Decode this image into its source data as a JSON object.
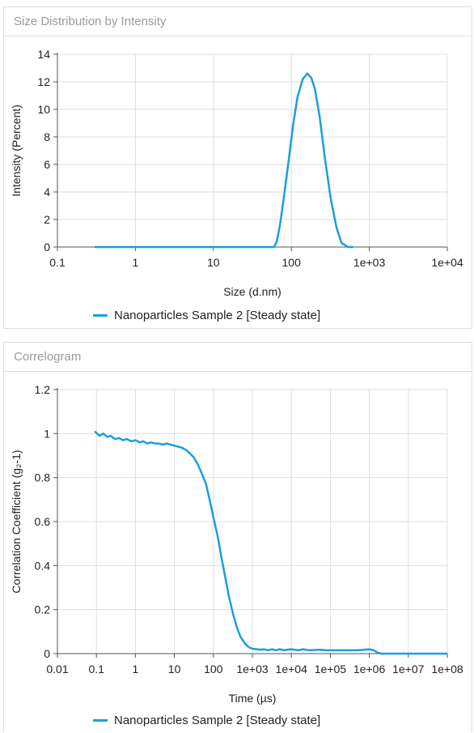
{
  "panels": [
    {
      "title": "Size Distribution by Intensity"
    },
    {
      "title": "Correlogram"
    }
  ],
  "colors": {
    "series": "#1a9fdb",
    "grid": "#dedede",
    "axis": "#555555"
  },
  "chart_data": [
    {
      "type": "line",
      "title": "Size Distribution by Intensity",
      "xlabel": "Size (d.nm)",
      "ylabel": "Intensity (Percent)",
      "xscale": "log",
      "xlim": [
        0.1,
        10000
      ],
      "ylim": [
        0,
        14
      ],
      "xticks": [
        "0.1",
        "1",
        "10",
        "100",
        "1e+03",
        "1e+04"
      ],
      "yticks": [
        "0",
        "2",
        "4",
        "6",
        "8",
        "10",
        "12",
        "14"
      ],
      "grid": true,
      "legend": "bottom-center",
      "series": [
        {
          "name": "Nanoparticles Sample 2 [Steady state]",
          "x": [
            0.3,
            1,
            10,
            40,
            60,
            65,
            72,
            80,
            92,
            105,
            120,
            140,
            160,
            180,
            200,
            230,
            270,
            320,
            380,
            440,
            530,
            620
          ],
          "y": [
            0,
            0,
            0,
            0,
            0,
            0.4,
            1.7,
            3.6,
            6.2,
            8.8,
            10.9,
            12.2,
            12.6,
            12.3,
            11.5,
            9.5,
            6.4,
            3.5,
            1.4,
            0.3,
            0,
            0
          ]
        }
      ]
    },
    {
      "type": "line",
      "title": "Correlogram",
      "xlabel": "Time (µs)",
      "ylabel": "Correlation Coefficient (g₂-1)",
      "xscale": "log",
      "xlim": [
        0.01,
        100000000
      ],
      "ylim": [
        0,
        1.2
      ],
      "xticks": [
        "0.01",
        "0.1",
        "1",
        "10",
        "100",
        "1e+03",
        "1e+04",
        "1e+05",
        "1e+06",
        "1e+07",
        "1e+08"
      ],
      "yticks": [
        "0",
        "0.2",
        "0.4",
        "0.6",
        "0.8",
        "1",
        "1.2"
      ],
      "grid": true,
      "legend": "bottom-center",
      "series": [
        {
          "name": "Nanoparticles Sample 2 [Steady state]",
          "x": [
            0.09,
            0.12,
            0.15,
            0.19,
            0.23,
            0.3,
            0.38,
            0.48,
            0.6,
            0.8,
            1,
            1.3,
            1.6,
            2,
            2.5,
            3.2,
            4,
            5,
            6.5,
            8,
            10,
            13,
            16,
            20,
            25,
            32,
            40,
            50,
            65,
            80,
            100,
            130,
            160,
            200,
            250,
            320,
            400,
            500,
            650,
            800,
            1000,
            1300,
            1600,
            2000,
            2500,
            3200,
            4000,
            5000,
            6500,
            8000,
            10000,
            15000,
            20000,
            30000,
            50000,
            80000,
            100000,
            200000,
            500000,
            1000000,
            1300000,
            1600000,
            2000000,
            100000000
          ],
          "y": [
            1.01,
            0.99,
            1.0,
            0.985,
            0.99,
            0.975,
            0.98,
            0.97,
            0.975,
            0.965,
            0.97,
            0.96,
            0.965,
            0.955,
            0.96,
            0.955,
            0.955,
            0.95,
            0.955,
            0.95,
            0.945,
            0.94,
            0.935,
            0.925,
            0.91,
            0.89,
            0.86,
            0.82,
            0.77,
            0.7,
            0.62,
            0.53,
            0.44,
            0.35,
            0.26,
            0.18,
            0.12,
            0.075,
            0.045,
            0.03,
            0.022,
            0.02,
            0.018,
            0.02,
            0.015,
            0.02,
            0.015,
            0.02,
            0.015,
            0.018,
            0.02,
            0.015,
            0.02,
            0.015,
            0.018,
            0.015,
            0.015,
            0.015,
            0.015,
            0.02,
            0.015,
            0.005,
            0,
            0
          ]
        }
      ]
    }
  ]
}
